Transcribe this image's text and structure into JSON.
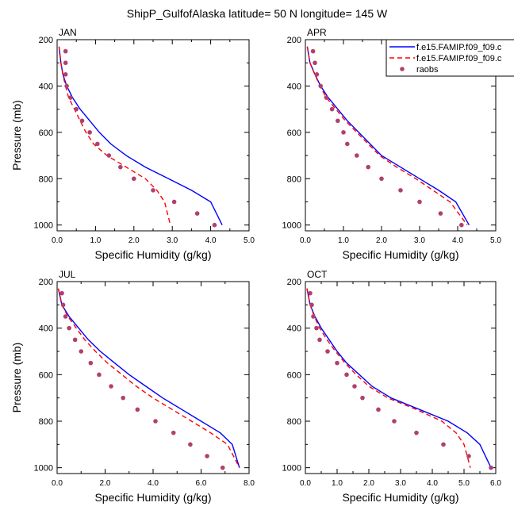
{
  "title": "ShipP_GulfofAlaska  latitude= 50 N longitude= 145 W",
  "legend": {
    "entries": [
      {
        "label": "f.e15.FAMIP.f09_f09.c",
        "color": "#0000ff",
        "style": "solid"
      },
      {
        "label": "f.e15.FAMIP.f09_f09.c",
        "color": "#ff0000",
        "style": "dashed"
      },
      {
        "label": "raobs",
        "color": "#b04070",
        "style": "dot"
      }
    ]
  },
  "chart_data": [
    {
      "type": "line",
      "panel_label": "JAN",
      "xlabel": "Specific Humidity (g/kg)",
      "ylabel": "Pressure (mb)",
      "xlim": [
        0,
        5
      ],
      "ylim": [
        200,
        1025
      ],
      "y_reversed": true,
      "xticks": [
        "0.0",
        "1.0",
        "2.0",
        "3.0",
        "4.0",
        "5.0"
      ],
      "yticks": [
        "200",
        "400",
        "600",
        "800",
        "1000"
      ],
      "series": [
        {
          "x": [
            0.05,
            0.1,
            0.15,
            0.25,
            0.4,
            0.6,
            0.85,
            1.1,
            1.4,
            1.8,
            2.3,
            2.9,
            3.5,
            4.0,
            4.3
          ],
          "y": [
            230,
            300,
            350,
            400,
            450,
            500,
            550,
            600,
            650,
            700,
            750,
            800,
            850,
            900,
            1000
          ]
        },
        {
          "x": [
            0.05,
            0.1,
            0.15,
            0.22,
            0.3,
            0.45,
            0.6,
            0.75,
            0.95,
            1.3,
            1.8,
            2.3,
            2.6,
            2.8,
            2.95
          ],
          "y": [
            230,
            300,
            350,
            400,
            450,
            500,
            550,
            600,
            650,
            700,
            750,
            800,
            850,
            900,
            1000
          ]
        },
        {
          "x": [
            0.22,
            0.22,
            0.22,
            0.25,
            0.35,
            0.5,
            0.65,
            0.85,
            1.05,
            1.35,
            1.65,
            2.0,
            2.5,
            3.05,
            3.65,
            4.1
          ],
          "y": [
            250,
            300,
            350,
            400,
            450,
            500,
            550,
            600,
            650,
            700,
            750,
            800,
            850,
            900,
            950,
            1000
          ]
        }
      ]
    },
    {
      "type": "line",
      "panel_label": "APR",
      "xlabel": "Specific Humidity (g/kg)",
      "ylabel": "",
      "xlim": [
        0,
        5
      ],
      "ylim": [
        200,
        1025
      ],
      "y_reversed": true,
      "xticks": [
        "0.0",
        "1.0",
        "2.0",
        "3.0",
        "4.0",
        "5.0"
      ],
      "yticks": [
        "200",
        "400",
        "600",
        "800",
        "1000"
      ],
      "series": [
        {
          "x": [
            0.05,
            0.12,
            0.25,
            0.4,
            0.6,
            0.85,
            1.1,
            1.4,
            1.7,
            2.0,
            2.5,
            3.0,
            3.5,
            3.95,
            4.3
          ],
          "y": [
            230,
            300,
            350,
            400,
            450,
            500,
            550,
            600,
            650,
            700,
            750,
            800,
            850,
            900,
            1000
          ]
        },
        {
          "x": [
            0.05,
            0.12,
            0.25,
            0.38,
            0.55,
            0.8,
            1.05,
            1.35,
            1.65,
            1.95,
            2.4,
            2.9,
            3.35,
            3.8,
            4.25
          ],
          "y": [
            230,
            300,
            350,
            400,
            450,
            500,
            550,
            600,
            650,
            700,
            750,
            800,
            850,
            900,
            1000
          ]
        },
        {
          "x": [
            0.2,
            0.25,
            0.3,
            0.4,
            0.55,
            0.7,
            0.85,
            1.0,
            1.1,
            1.35,
            1.65,
            2.0,
            2.5,
            3.0,
            3.55,
            4.1
          ],
          "y": [
            250,
            300,
            350,
            400,
            450,
            500,
            550,
            600,
            650,
            700,
            750,
            800,
            850,
            900,
            950,
            1000
          ]
        }
      ]
    },
    {
      "type": "line",
      "panel_label": "JUL",
      "xlabel": "Specific Humidity (g/kg)",
      "ylabel": "Pressure (mb)",
      "xlim": [
        0,
        8
      ],
      "ylim": [
        200,
        1025
      ],
      "y_reversed": true,
      "xticks": [
        "0.0",
        "2.0",
        "4.0",
        "6.0",
        "8.0"
      ],
      "yticks": [
        "200",
        "400",
        "600",
        "800",
        "1000"
      ],
      "series": [
        {
          "x": [
            0.05,
            0.2,
            0.5,
            0.9,
            1.3,
            1.8,
            2.4,
            3.0,
            3.7,
            4.4,
            5.2,
            6.0,
            6.8,
            7.3,
            7.6
          ],
          "y": [
            230,
            300,
            350,
            400,
            450,
            500,
            550,
            600,
            650,
            700,
            750,
            800,
            850,
            900,
            1000
          ]
        },
        {
          "x": [
            0.05,
            0.2,
            0.45,
            0.8,
            1.15,
            1.6,
            2.1,
            2.7,
            3.3,
            4.0,
            4.8,
            5.6,
            6.4,
            7.1,
            7.6
          ],
          "y": [
            230,
            300,
            350,
            400,
            450,
            500,
            550,
            600,
            650,
            700,
            750,
            800,
            850,
            900,
            1000
          ]
        },
        {
          "x": [
            0.2,
            0.25,
            0.35,
            0.5,
            0.75,
            1.0,
            1.4,
            1.75,
            2.25,
            2.75,
            3.35,
            4.1,
            4.85,
            5.55,
            6.25,
            6.9
          ],
          "y": [
            250,
            300,
            350,
            400,
            450,
            500,
            550,
            600,
            650,
            700,
            750,
            800,
            850,
            900,
            950,
            1000
          ]
        }
      ]
    },
    {
      "type": "line",
      "panel_label": "OCT",
      "xlabel": "Specific Humidity (g/kg)",
      "ylabel": "",
      "xlim": [
        0,
        6
      ],
      "ylim": [
        200,
        1025
      ],
      "y_reversed": true,
      "xticks": [
        "0.0",
        "1.0",
        "2.0",
        "3.0",
        "4.0",
        "5.0",
        "6.0"
      ],
      "yticks": [
        "200",
        "400",
        "600",
        "800",
        "1000"
      ],
      "series": [
        {
          "x": [
            0.05,
            0.15,
            0.3,
            0.5,
            0.75,
            1.0,
            1.3,
            1.7,
            2.1,
            2.7,
            3.6,
            4.5,
            5.1,
            5.5,
            5.85
          ],
          "y": [
            230,
            300,
            350,
            400,
            450,
            500,
            550,
            600,
            650,
            700,
            750,
            800,
            850,
            900,
            1000
          ]
        },
        {
          "x": [
            0.05,
            0.15,
            0.28,
            0.45,
            0.68,
            0.95,
            1.25,
            1.6,
            2.0,
            2.6,
            3.5,
            4.3,
            4.75,
            5.0,
            5.2
          ],
          "y": [
            230,
            300,
            350,
            400,
            450,
            500,
            550,
            600,
            650,
            700,
            750,
            800,
            850,
            900,
            1000
          ]
        },
        {
          "x": [
            0.15,
            0.2,
            0.25,
            0.35,
            0.45,
            0.7,
            1.0,
            1.3,
            1.55,
            1.8,
            2.3,
            2.8,
            3.5,
            4.35,
            5.15,
            5.85
          ],
          "y": [
            250,
            300,
            350,
            400,
            450,
            500,
            550,
            600,
            650,
            700,
            750,
            800,
            850,
            900,
            950,
            1000
          ]
        }
      ]
    }
  ]
}
